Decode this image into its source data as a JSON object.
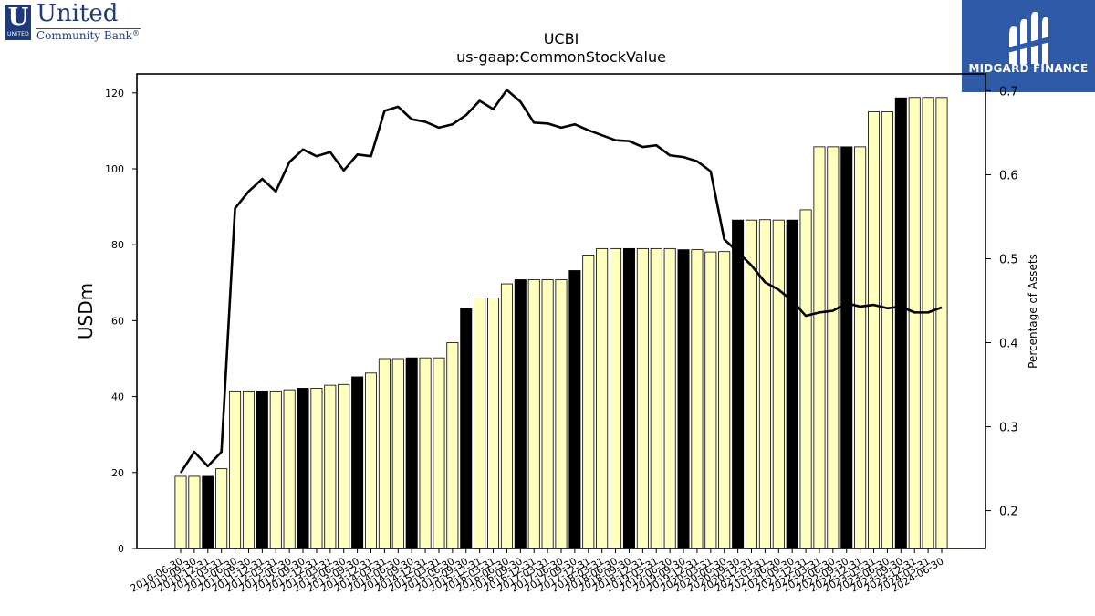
{
  "logos": {
    "left": {
      "letter": "U",
      "sub": "UNITED",
      "name": "United",
      "tagline": "Community Bank",
      "mark": "®",
      "color": "#1f3a7a",
      "accent": "#c8102e"
    },
    "right": {
      "text": "MIDGARD FINANCE",
      "color": "#2f5aa8"
    }
  },
  "chart_data": {
    "type": "bar",
    "title": "UCBI",
    "subtitle": "us-gaap:CommonStockValue",
    "ylabel": "USDm",
    "y2label": "Percentage of Assets",
    "ylim": [
      0,
      125
    ],
    "y2lim": [
      0.155,
      0.72
    ],
    "yticks": [
      0,
      20,
      40,
      60,
      80,
      100,
      120
    ],
    "y2ticks": [
      0.2,
      0.3,
      0.4,
      0.5,
      0.6,
      0.7
    ],
    "grid": false,
    "bar_colors": {
      "default": "#ffffc0",
      "highlight": "#000000",
      "edge": "#000000",
      "line": "#000000"
    },
    "categories": [
      "2010-06-30",
      "2010-09-30",
      "2010-12-31",
      "2011-03-31",
      "2011-06-30",
      "2011-09-30",
      "2011-12-31",
      "2012-03-31",
      "2012-06-30",
      "2012-09-30",
      "2012-12-31",
      "2013-03-31",
      "2013-06-30",
      "2013-09-30",
      "2013-12-31",
      "2014-03-31",
      "2014-06-30",
      "2014-09-30",
      "2014-12-31",
      "2015-03-31",
      "2015-06-30",
      "2015-09-30",
      "2015-12-31",
      "2016-03-31",
      "2016-06-30",
      "2016-09-30",
      "2016-12-31",
      "2017-03-31",
      "2017-06-30",
      "2017-09-30",
      "2017-12-31",
      "2018-03-31",
      "2018-06-30",
      "2018-09-30",
      "2018-12-31",
      "2019-03-31",
      "2019-06-30",
      "2019-09-30",
      "2019-12-31",
      "2020-03-31",
      "2020-06-30",
      "2020-09-30",
      "2020-12-31",
      "2021-03-31",
      "2021-06-30",
      "2021-09-30",
      "2021-12-31",
      "2022-03-31",
      "2022-06-30",
      "2022-09-30",
      "2022-12-31",
      "2023-03-31",
      "2023-06-30",
      "2023-09-30",
      "2023-12-31",
      "2024-03-31",
      "2024-06-30"
    ],
    "tick_labels": [
      "2010-06-30",
      "2010-09-30",
      "2010-12-31",
      "2011-03-31",
      "2011-06-30",
      "2011-09-30",
      "2011-12-31",
      "2012-03-31",
      "2012-06-30",
      "2012-09-30",
      "2012-12-31",
      "2013-03-31",
      "2013-06-30",
      "2013-09-30",
      "2013-12-31",
      "2014-03-31",
      "2014-06-30",
      "2014-09-30",
      "2014-12-31",
      "2015-03-31",
      "2015-06-30",
      "2015-09-30",
      "2015-12-31",
      "2016-03-31",
      "2016-06-30",
      "2016-09-30",
      "2016-12-31",
      "2017-03-31",
      "2017-06-30",
      "2017-09-30",
      "2017-12-31",
      "2018-03-31",
      "2018-06-30",
      "2018-09-30",
      "2018-12-31",
      "2019-03-31",
      "2019-06-30",
      "2019-09-30",
      "2019-12-31",
      "2020-03-31",
      "2020-06-30",
      "2020-09-30",
      "2020-12-31",
      "2021-03-31",
      "2021-06-30",
      "2021-09-30",
      "2021-12-31",
      "2022-03-31",
      "2022-06-30",
      "2022-09-30",
      "2022-12-31",
      "2023-03-31",
      "2023-06-30",
      "2023-09-30",
      "2023-12-31",
      "2024-03-31",
      "2024-06-30"
    ],
    "series": [
      {
        "axis": "left",
        "type": "bar",
        "values": [
          19.0,
          19.0,
          19.0,
          21.0,
          41.5,
          41.5,
          41.5,
          41.5,
          41.8,
          42.2,
          42.2,
          43.0,
          43.2,
          45.2,
          46.2,
          50.0,
          50.0,
          50.2,
          50.2,
          50.2,
          54.2,
          63.2,
          66.0,
          66.0,
          69.7,
          70.8,
          70.8,
          70.8,
          70.8,
          73.2,
          77.3,
          79.0,
          79.0,
          79.0,
          79.0,
          79.0,
          79.0,
          78.7,
          78.7,
          78.1,
          78.2,
          86.5,
          86.5,
          86.6,
          86.5,
          86.5,
          89.2,
          105.8,
          105.8,
          105.8,
          105.8,
          115.0,
          115.0,
          118.7,
          118.8,
          118.8,
          118.8
        ],
        "highlight": [
          false,
          false,
          true,
          false,
          false,
          false,
          true,
          false,
          false,
          true,
          false,
          false,
          false,
          true,
          false,
          false,
          false,
          true,
          false,
          false,
          false,
          true,
          false,
          false,
          false,
          true,
          false,
          false,
          false,
          true,
          false,
          false,
          false,
          true,
          false,
          false,
          false,
          true,
          false,
          false,
          false,
          true,
          false,
          false,
          false,
          true,
          false,
          false,
          false,
          true,
          false,
          false,
          false,
          true,
          false,
          false,
          false
        ]
      },
      {
        "axis": "right",
        "type": "line",
        "values": [
          0.245,
          0.27,
          0.253,
          0.27,
          0.56,
          0.58,
          0.595,
          0.58,
          0.615,
          0.63,
          0.622,
          0.627,
          0.605,
          0.624,
          0.622,
          0.676,
          0.681,
          0.666,
          0.663,
          0.656,
          0.66,
          0.671,
          0.688,
          0.678,
          0.701,
          0.687,
          0.662,
          0.661,
          0.656,
          0.66,
          0.653,
          0.647,
          0.641,
          0.64,
          0.633,
          0.635,
          0.623,
          0.621,
          0.616,
          0.604,
          0.523,
          0.508,
          0.492,
          0.472,
          0.463,
          0.45,
          0.432,
          0.436,
          0.438,
          0.447,
          0.443,
          0.445,
          0.441,
          0.443,
          0.436,
          0.436,
          0.442
        ]
      }
    ]
  }
}
